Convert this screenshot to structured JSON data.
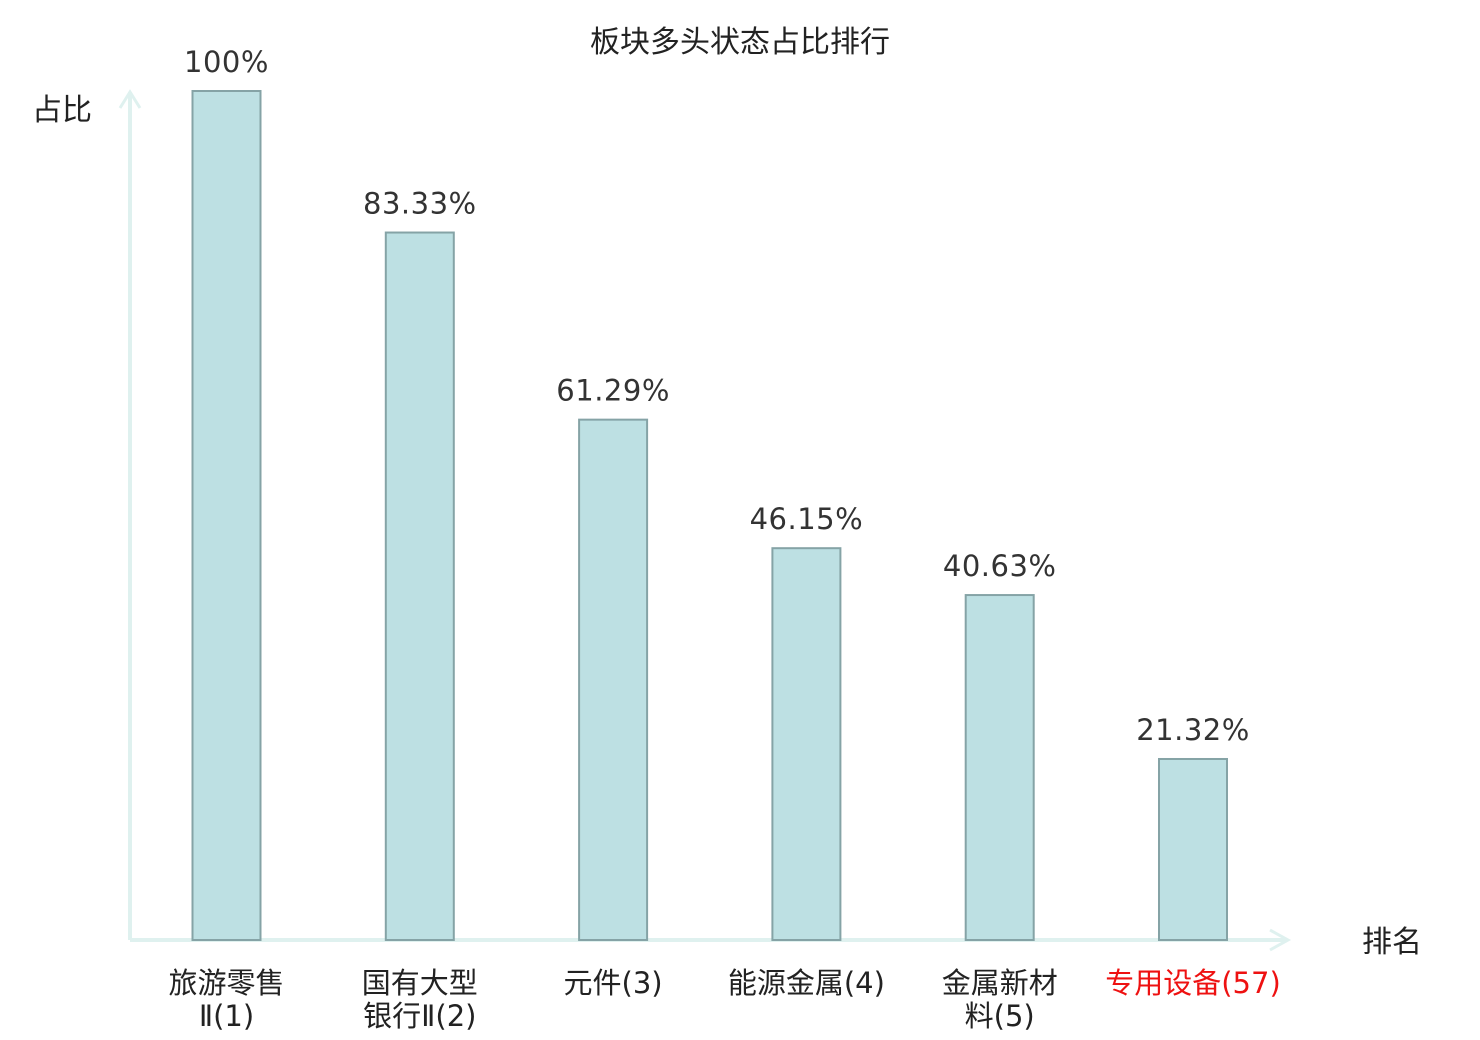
{
  "chart_data": {
    "type": "bar",
    "title": "板块多头状态占比排行",
    "ylabel": "占比",
    "xlabel": "排名",
    "categories": [
      [
        "旅游零售",
        "Ⅱ(1)"
      ],
      [
        "国有大型",
        "银行Ⅱ(2)"
      ],
      [
        "元件(3)"
      ],
      [
        "能源金属(4)"
      ],
      [
        "金属新材",
        "料(5)"
      ],
      [
        "专用设备(57)"
      ]
    ],
    "values": [
      100,
      83.33,
      61.29,
      46.15,
      40.63,
      21.32
    ],
    "value_labels": [
      "100%",
      "83.33%",
      "61.29%",
      "46.15%",
      "40.63%",
      "21.32%"
    ],
    "highlight_index": 5,
    "ylim": [
      0,
      100
    ],
    "grid": false,
    "colors": {
      "bar_fill": "#bde0e3",
      "bar_stroke": "#85a3a6",
      "axis": "#dff1ef",
      "highlight_text": "#ee1111"
    }
  }
}
